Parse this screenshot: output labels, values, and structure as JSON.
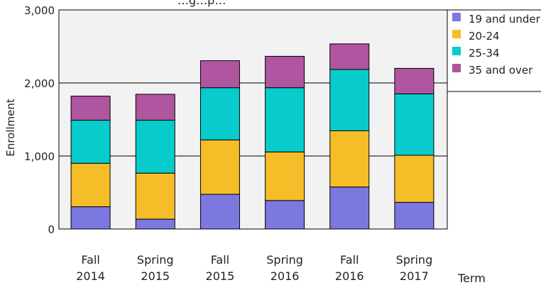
{
  "chart_data": {
    "type": "bar",
    "stacked": true,
    "title": "",
    "title_partial": "…g…p…",
    "xlabel": "Term",
    "ylabel": "Enrollment",
    "ylim": [
      0,
      3000
    ],
    "yticks": [
      {
        "value": 0,
        "label": "0"
      },
      {
        "value": 1000,
        "label": "1,000"
      },
      {
        "value": 2000,
        "label": "2,000"
      },
      {
        "value": 3000,
        "label": "3,000"
      }
    ],
    "grid": true,
    "legend_position": "top-right",
    "categories": [
      [
        "Fall",
        "2014"
      ],
      [
        "Spring",
        "2015"
      ],
      [
        "Fall",
        "2015"
      ],
      [
        "Spring",
        "2016"
      ],
      [
        "Fall",
        "2016"
      ],
      [
        "Spring",
        "2017"
      ]
    ],
    "series": [
      {
        "name": "19 and under",
        "color": "#7b78e0",
        "values": [
          305,
          135,
          475,
          390,
          575,
          365
        ]
      },
      {
        "name": "20-24",
        "color": "#f5bd28",
        "values": [
          595,
          630,
          745,
          665,
          770,
          645
        ]
      },
      {
        "name": "25-34",
        "color": "#08cccc",
        "values": [
          590,
          725,
          715,
          880,
          840,
          840
        ]
      },
      {
        "name": "35 and over",
        "color": "#b0559f",
        "values": [
          330,
          355,
          370,
          430,
          350,
          350
        ]
      }
    ]
  }
}
